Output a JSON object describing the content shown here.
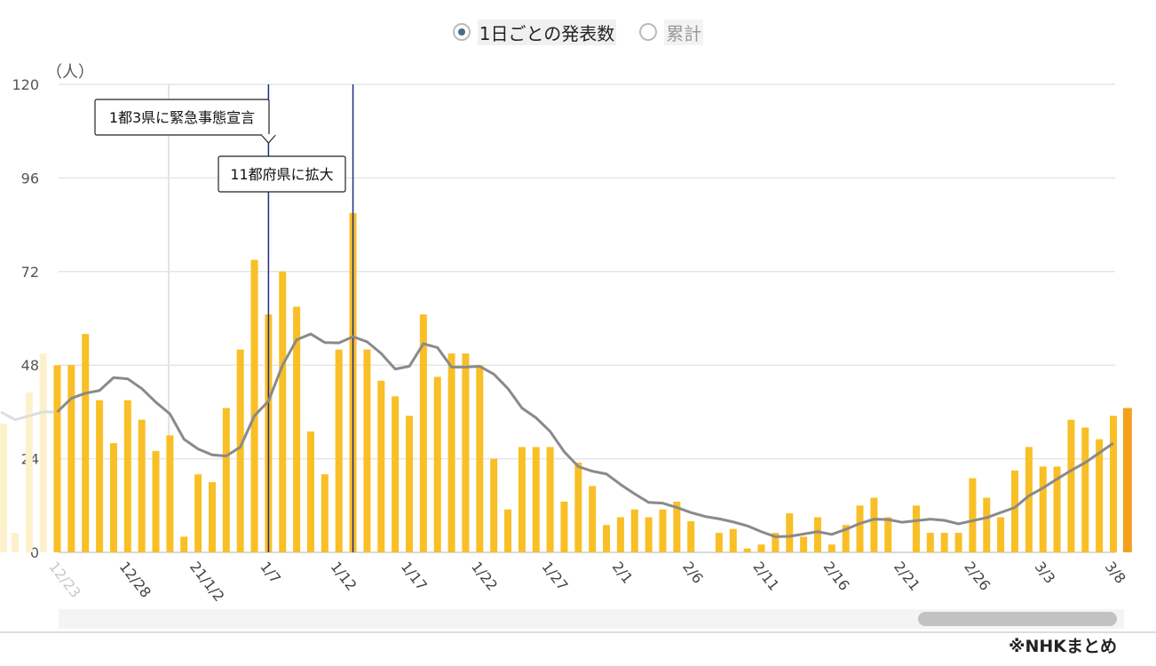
{
  "toggle": {
    "daily_label": "1日ごとの発表数",
    "cumulative_label": "累計",
    "selected": "daily"
  },
  "source_note": "※NHKまとめ",
  "colors": {
    "bar": "#f9bf26",
    "bar_faded": "#fdf1cc",
    "bar_latest": "#f5a01c",
    "line": "#8a8a8a",
    "event_line": "#1f2c86",
    "grid": "#e6e6e6"
  },
  "chart_data": {
    "type": "bar",
    "ylabel": "（人）",
    "ylim": [
      0,
      120
    ],
    "yticks": [
      0,
      24,
      48,
      72,
      96,
      120
    ],
    "x_tick_labels": [
      "12/23",
      "12/28",
      "21/1/2",
      "1/7",
      "1/12",
      "1/17",
      "1/22",
      "1/27",
      "2/1",
      "2/6",
      "2/11",
      "2/16",
      "2/21",
      "2/26",
      "3/3",
      "3/8"
    ],
    "x_tick_indices": [
      0,
      5,
      10,
      15,
      20,
      25,
      30,
      35,
      40,
      45,
      50,
      55,
      60,
      65,
      70,
      75
    ],
    "first_date": "12/23",
    "x_scrolled_out": {
      "values": [
        33,
        5,
        41,
        51
      ],
      "avg": [
        36,
        34,
        35,
        36
      ]
    },
    "series": [
      {
        "kind": "bar",
        "values": [
          48,
          48,
          56,
          39,
          28,
          39,
          34,
          26,
          30,
          4,
          20,
          18,
          37,
          52,
          75,
          61,
          72,
          63,
          31,
          20,
          52,
          87,
          52,
          44,
          40,
          35,
          61,
          45,
          51,
          51,
          48,
          24,
          11,
          27,
          27,
          27,
          13,
          23,
          17,
          7,
          9,
          11,
          9,
          11,
          13,
          8,
          0,
          5,
          6,
          1,
          2,
          5,
          10,
          4,
          9,
          2,
          7,
          12,
          14,
          9,
          0,
          12,
          5,
          5,
          5,
          19,
          14,
          9,
          21,
          27,
          22,
          22,
          34,
          32,
          29,
          35,
          37
        ]
      },
      {
        "kind": "line",
        "values": [
          36,
          39.5,
          40.8,
          41.5,
          44.8,
          44.5,
          42,
          38.5,
          35.5,
          29,
          26.5,
          25,
          24.7,
          27,
          35,
          38.8,
          48,
          54.5,
          56,
          53.8,
          53.7,
          55.3,
          54,
          51,
          47,
          47.7,
          53.5,
          52.5,
          47.5,
          47.5,
          47.7,
          45.7,
          42,
          37,
          34.5,
          31,
          25.8,
          22,
          20.8,
          20.1,
          17.4,
          15,
          12.8,
          12.6,
          11.5,
          10.2,
          9.2,
          8.6,
          7.8,
          6.8,
          5.3,
          4,
          4.1,
          4.7,
          5.3,
          4.6,
          5.9,
          7.4,
          8.5,
          8.4,
          7.7,
          8.1,
          8.5,
          8.2,
          7.3,
          8.1,
          8.9,
          10.2,
          11.5,
          14.5,
          16.5,
          18.8,
          21,
          23,
          25.5,
          28,
          29.5
        ]
      }
    ],
    "annotations": [
      {
        "text": "1都3県に緊急事態宣言",
        "index": 15
      },
      {
        "text": "11都府県に拡大",
        "index": 21
      }
    ]
  }
}
